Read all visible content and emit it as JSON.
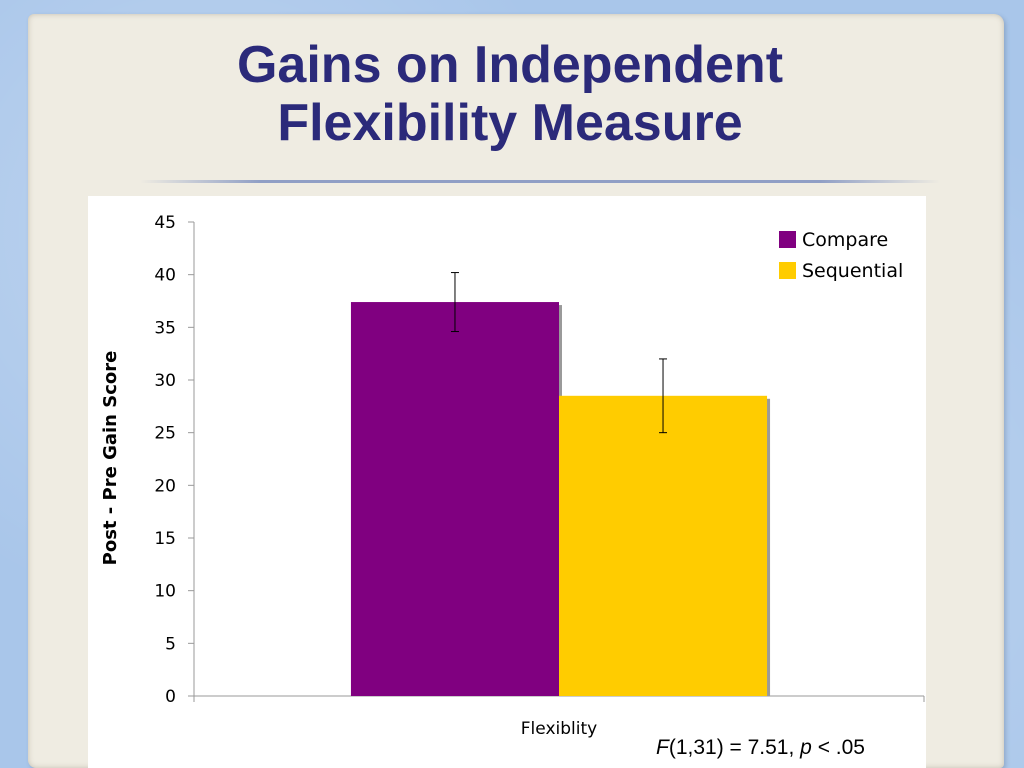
{
  "slide": {
    "title_line1": "Gains on Independent",
    "title_line2": "Flexibility Measure",
    "stat": {
      "f_symbol": "F",
      "f_args": "(1,31) = 7.51, ",
      "p_symbol": "p",
      "p_value": " < .05"
    }
  },
  "colors": {
    "compare": "#800080",
    "sequential": "#ffcc00",
    "title": "#2b2a7a"
  },
  "chart_data": {
    "type": "bar",
    "categories": [
      "Flexiblity"
    ],
    "series": [
      {
        "name": "Compare",
        "values": [
          37.4
        ],
        "error": [
          2.8
        ],
        "color": "#800080"
      },
      {
        "name": "Sequential",
        "values": [
          28.5
        ],
        "error": [
          3.5
        ],
        "color": "#ffcc00"
      }
    ],
    "ylabel": "Post - Pre Gain Score",
    "xlabel": "",
    "ylim": [
      0,
      45
    ],
    "yticks": [
      0,
      5,
      10,
      15,
      20,
      25,
      30,
      35,
      40,
      45
    ],
    "grid": false,
    "legend_position": "top-right"
  }
}
